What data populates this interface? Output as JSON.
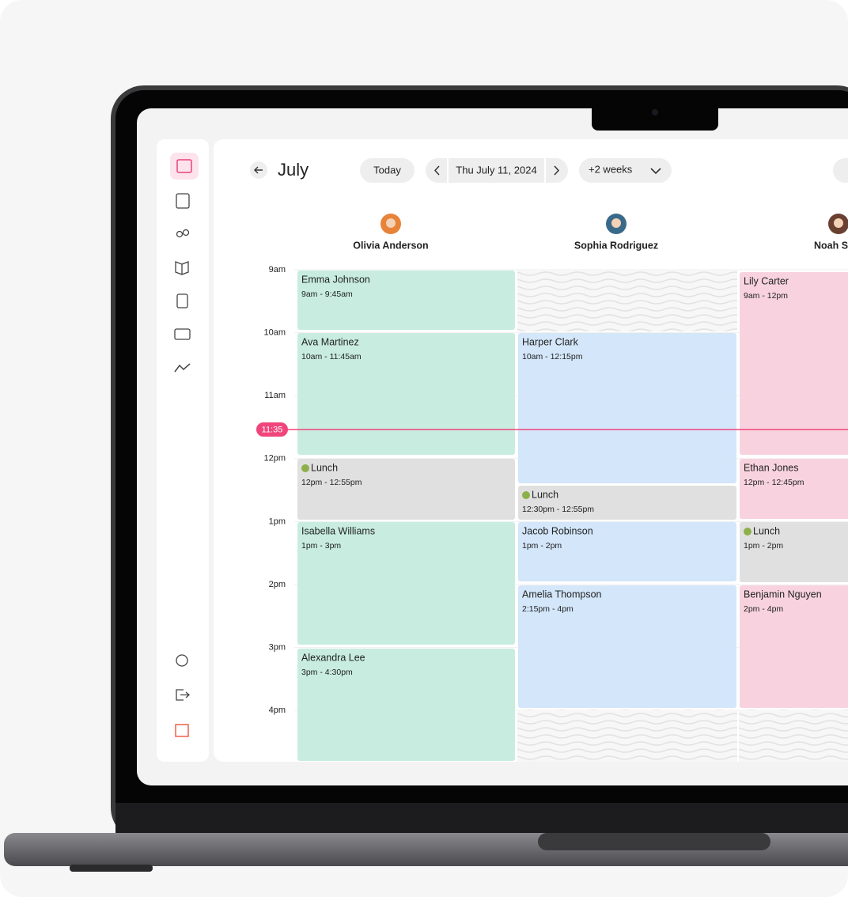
{
  "header": {
    "month": "July",
    "today": "Today",
    "date": "Thu July 11, 2024",
    "range": "+2 weeks"
  },
  "current_time": "11:35",
  "time_labels": [
    "9am",
    "10am",
    "11am",
    "12pm",
    "1pm",
    "2pm",
    "3pm",
    "4pm"
  ],
  "columns": [
    {
      "name": "Olivia Anderson",
      "events": [
        {
          "name": "Emma Johnson",
          "time": "9am - 9:45am"
        },
        {
          "name": "Ava Martinez",
          "time": "10am - 11:45am"
        },
        {
          "name": "Lunch",
          "time": "12pm - 12:55pm"
        },
        {
          "name": "Isabella Williams",
          "time": "1pm - 3pm"
        },
        {
          "name": "Alexandra Lee",
          "time": "3pm - 4:30pm"
        }
      ]
    },
    {
      "name": "Sophia Rodriguez",
      "events": [
        {
          "name": "Harper Clark",
          "time": "10am - 12:15pm"
        },
        {
          "name": "Lunch",
          "time": "12:30pm - 12:55pm"
        },
        {
          "name": "Jacob Robinson",
          "time": "1pm - 2pm"
        },
        {
          "name": "Amelia Thompson",
          "time": "2:15pm - 4pm"
        }
      ]
    },
    {
      "name": "Noah S",
      "events": [
        {
          "name": "Lily Carter",
          "time": "9am - 12pm"
        },
        {
          "name": "Ethan Jones",
          "time": "12pm - 12:45pm"
        },
        {
          "name": "Lunch",
          "time": "1pm - 2pm"
        },
        {
          "name": "Benjamin Nguyen",
          "time": "2pm - 4pm"
        }
      ]
    }
  ]
}
